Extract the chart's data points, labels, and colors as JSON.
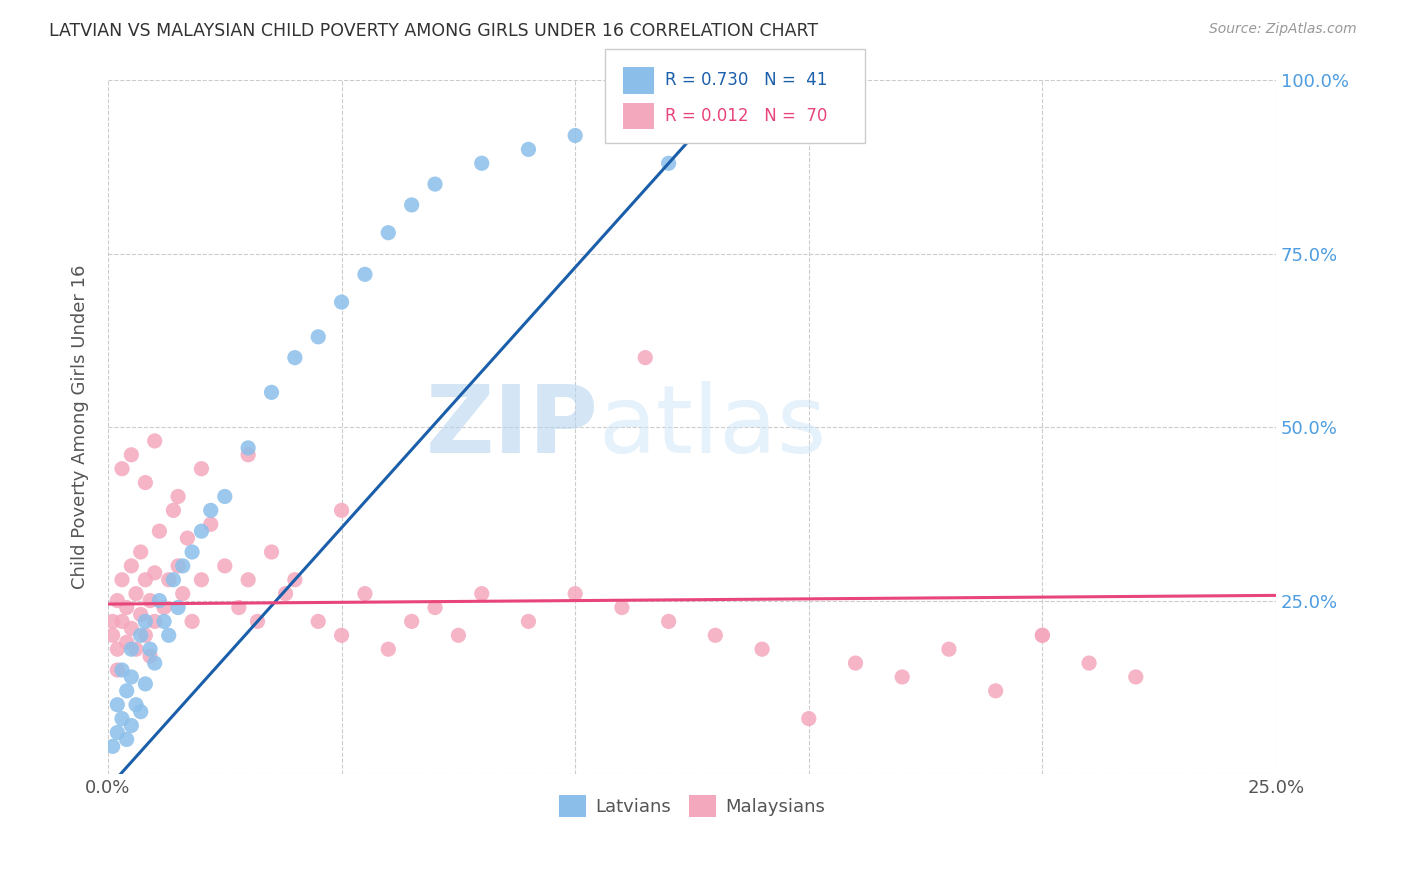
{
  "title": "LATVIAN VS MALAYSIAN CHILD POVERTY AMONG GIRLS UNDER 16 CORRELATION CHART",
  "source": "Source: ZipAtlas.com",
  "ylabel": "Child Poverty Among Girls Under 16",
  "xlim": [
    0.0,
    0.25
  ],
  "ylim": [
    0.0,
    1.0
  ],
  "x_tick_positions": [
    0.0,
    0.05,
    0.1,
    0.15,
    0.2,
    0.25
  ],
  "x_tick_labels": [
    "0.0%",
    "",
    "",
    "",
    "",
    "25.0%"
  ],
  "y_tick_positions": [
    0.0,
    0.25,
    0.5,
    0.75,
    1.0
  ],
  "y_tick_labels_right": [
    "",
    "25.0%",
    "50.0%",
    "75.0%",
    "100.0%"
  ],
  "latvian_color": "#8bbfea",
  "malaysian_color": "#f4a8be",
  "latvian_line_color": "#1b5faa",
  "malaysian_line_color": "#e8457a",
  "R_latvian": 0.73,
  "N_latvian": 41,
  "R_malaysian": 0.012,
  "N_malaysian": 70,
  "background_color": "#ffffff",
  "grid_color": "#cccccc",
  "right_axis_color": "#4d9de0",
  "title_color": "#333333",
  "source_color": "#999999",
  "watermark_color": "#cce0f5",
  "lat_x": [
    0.001,
    0.002,
    0.002,
    0.003,
    0.003,
    0.004,
    0.004,
    0.005,
    0.005,
    0.005,
    0.006,
    0.007,
    0.007,
    0.008,
    0.008,
    0.009,
    0.01,
    0.011,
    0.012,
    0.013,
    0.014,
    0.015,
    0.016,
    0.018,
    0.02,
    0.022,
    0.025,
    0.03,
    0.035,
    0.04,
    0.045,
    0.05,
    0.055,
    0.06,
    0.065,
    0.07,
    0.08,
    0.09,
    0.1,
    0.11,
    0.12
  ],
  "lat_y": [
    0.04,
    0.06,
    0.1,
    0.08,
    0.15,
    0.05,
    0.12,
    0.07,
    0.14,
    0.18,
    0.1,
    0.09,
    0.2,
    0.13,
    0.22,
    0.18,
    0.16,
    0.25,
    0.22,
    0.2,
    0.28,
    0.24,
    0.3,
    0.32,
    0.35,
    0.38,
    0.4,
    0.47,
    0.55,
    0.6,
    0.63,
    0.68,
    0.72,
    0.78,
    0.82,
    0.85,
    0.88,
    0.9,
    0.92,
    0.95,
    0.88
  ],
  "mal_x": [
    0.001,
    0.001,
    0.002,
    0.002,
    0.002,
    0.003,
    0.003,
    0.004,
    0.004,
    0.005,
    0.005,
    0.006,
    0.006,
    0.007,
    0.007,
    0.008,
    0.008,
    0.009,
    0.009,
    0.01,
    0.01,
    0.011,
    0.012,
    0.013,
    0.014,
    0.015,
    0.016,
    0.017,
    0.018,
    0.02,
    0.022,
    0.025,
    0.028,
    0.03,
    0.032,
    0.035,
    0.038,
    0.04,
    0.045,
    0.05,
    0.055,
    0.06,
    0.065,
    0.07,
    0.075,
    0.08,
    0.09,
    0.1,
    0.11,
    0.12,
    0.13,
    0.14,
    0.15,
    0.16,
    0.17,
    0.18,
    0.19,
    0.2,
    0.21,
    0.22,
    0.003,
    0.005,
    0.008,
    0.01,
    0.015,
    0.02,
    0.03,
    0.05,
    0.115,
    0.2
  ],
  "mal_y": [
    0.2,
    0.22,
    0.18,
    0.25,
    0.15,
    0.22,
    0.28,
    0.19,
    0.24,
    0.21,
    0.3,
    0.18,
    0.26,
    0.23,
    0.32,
    0.2,
    0.28,
    0.25,
    0.17,
    0.22,
    0.29,
    0.35,
    0.24,
    0.28,
    0.38,
    0.3,
    0.26,
    0.34,
    0.22,
    0.28,
    0.36,
    0.3,
    0.24,
    0.28,
    0.22,
    0.32,
    0.26,
    0.28,
    0.22,
    0.2,
    0.26,
    0.18,
    0.22,
    0.24,
    0.2,
    0.26,
    0.22,
    0.26,
    0.24,
    0.22,
    0.2,
    0.18,
    0.08,
    0.16,
    0.14,
    0.18,
    0.12,
    0.2,
    0.16,
    0.14,
    0.44,
    0.46,
    0.42,
    0.48,
    0.4,
    0.44,
    0.46,
    0.38,
    0.6,
    0.2
  ]
}
